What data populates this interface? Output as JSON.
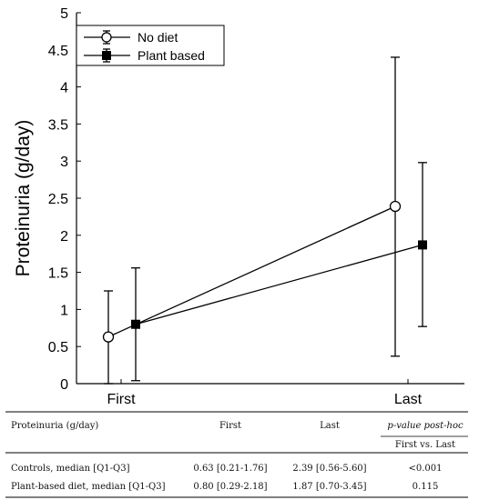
{
  "chart_data": {
    "type": "line",
    "categories": [
      "First",
      "Last"
    ],
    "ylabel": "Proteinuria (g/day)",
    "xlabel": "",
    "ylim": [
      0,
      5
    ],
    "yticks": [
      "0",
      "0.5",
      "1",
      "1.5",
      "2",
      "2.5",
      "3",
      "3.5",
      "4",
      "4.5",
      "5"
    ],
    "legend_position": "top-left",
    "grid": false,
    "series": [
      {
        "name": "No diet",
        "marker": "open-circle",
        "values": [
          0.63,
          2.39
        ],
        "err_low": [
          0.0,
          0.37
        ],
        "err_high": [
          1.25,
          4.4
        ]
      },
      {
        "name": "Plant based",
        "marker": "filled-square",
        "values": [
          0.8,
          1.87
        ],
        "err_low": [
          0.04,
          0.77
        ],
        "err_high": [
          1.56,
          2.98
        ]
      }
    ]
  },
  "table": {
    "headers": [
      "Proteinuria (g/day)",
      "First",
      "Last",
      "p-value post-hoc"
    ],
    "subheader": "First vs. Last",
    "rows": [
      [
        "Controls, median [Q1-Q3]",
        "0.63 [0.21-1.76]",
        "2.39 [0.56-5.60]",
        "<0.001"
      ],
      [
        "Plant-based diet, median [Q1-Q3]",
        "0.80 [0.29-2.18]",
        "1.87 [0.70-3.45]",
        "0.115"
      ]
    ]
  }
}
